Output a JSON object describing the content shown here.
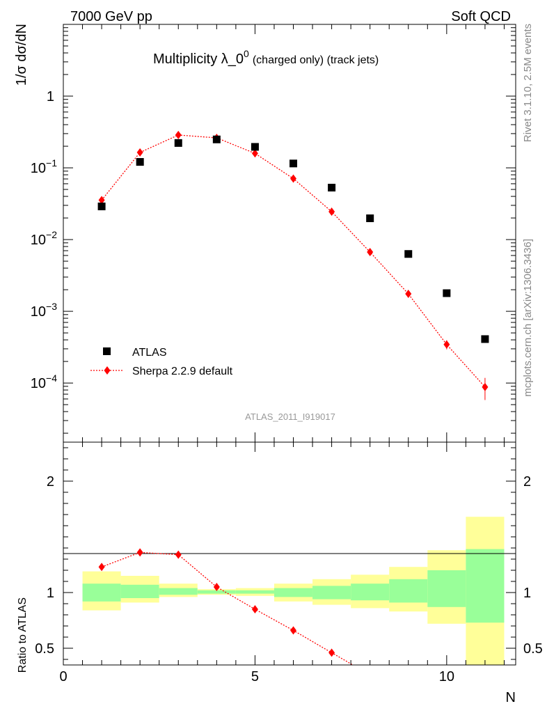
{
  "header": {
    "left": "7000 GeV pp",
    "right": "Soft QCD"
  },
  "main_title": {
    "prefix": "Multiplicity λ_0",
    "superscript": "0",
    "suffix": "(charged only) (track jets)"
  },
  "side_text": {
    "rivet": "Rivet 3.1.10,  2.5M events",
    "mcplots": "mcplots.cern.ch [arXiv:1306.3436]"
  },
  "analysis_tag": "ATLAS_2011_I919017",
  "legend": {
    "data_label": "ATLAS",
    "mc_label": "Sherpa 2.2.9 default"
  },
  "colors": {
    "data": "#000000",
    "mc": "#ff0000",
    "band_inner": "#99ff99",
    "band_outer": "#ffff99",
    "side_text": "#888888"
  },
  "chart_data": [
    {
      "type": "scatter",
      "panel": "main",
      "ylabel": "1/σ dσ/dN",
      "yscale": "log",
      "xlim": [
        0,
        11.8
      ],
      "ylim": [
        1.5e-05,
        10
      ],
      "ytick_labels": [
        {
          "mantissa": "10",
          "exp": "−4"
        },
        {
          "mantissa": "10",
          "exp": "−3"
        },
        {
          "mantissa": "10",
          "exp": "−2"
        },
        {
          "mantissa": "10",
          "exp": "−1"
        },
        {
          "mantissa": "1",
          "exp": ""
        }
      ],
      "series": [
        {
          "name": "ATLAS",
          "x": [
            1,
            2,
            3,
            4,
            5,
            6,
            7,
            8,
            9,
            10,
            11
          ],
          "y": [
            0.029,
            0.121,
            0.222,
            0.249,
            0.196,
            0.115,
            0.053,
            0.0198,
            0.0063,
            0.00179,
            0.00041
          ]
        },
        {
          "name": "Sherpa 2.2.9 default",
          "x": [
            1,
            2,
            3,
            4,
            5,
            6,
            7,
            8,
            9,
            10,
            11
          ],
          "y": [
            0.0355,
            0.164,
            0.287,
            0.262,
            0.159,
            0.0708,
            0.0245,
            0.0067,
            0.00175,
            0.000345,
            8.8e-05
          ],
          "yerr": [
            0,
            0,
            0,
            0,
            0,
            0,
            0,
            0,
            0,
            5e-05,
            3e-05
          ]
        }
      ]
    },
    {
      "type": "line",
      "panel": "ratio",
      "xlabel": "N",
      "ylabel": "Ratio to ATLAS",
      "xlim": [
        0,
        11.8
      ],
      "ylim": [
        0.35,
        2.35
      ],
      "xtick_labels": [
        "0",
        "5",
        "10"
      ],
      "ytick_labels": [
        "0.5",
        "1",
        "2"
      ],
      "bands": [
        {
          "xlo": 0.5,
          "xhi": 1.5,
          "inner": [
            0.92,
            1.08
          ],
          "outer": [
            0.84,
            1.19
          ]
        },
        {
          "xlo": 1.5,
          "xhi": 2.5,
          "inner": [
            0.95,
            1.07
          ],
          "outer": [
            0.91,
            1.15
          ]
        },
        {
          "xlo": 2.5,
          "xhi": 3.5,
          "inner": [
            0.98,
            1.04
          ],
          "outer": [
            0.96,
            1.08
          ]
        },
        {
          "xlo": 3.5,
          "xhi": 4.5,
          "inner": [
            0.99,
            1.02
          ],
          "outer": [
            0.98,
            1.03
          ]
        },
        {
          "xlo": 4.5,
          "xhi": 5.5,
          "inner": [
            0.99,
            1.02
          ],
          "outer": [
            0.97,
            1.04
          ]
        },
        {
          "xlo": 5.5,
          "xhi": 6.5,
          "inner": [
            0.96,
            1.04
          ],
          "outer": [
            0.92,
            1.08
          ]
        },
        {
          "xlo": 6.5,
          "xhi": 7.5,
          "inner": [
            0.94,
            1.06
          ],
          "outer": [
            0.89,
            1.12
          ]
        },
        {
          "xlo": 7.5,
          "xhi": 8.5,
          "inner": [
            0.93,
            1.08
          ],
          "outer": [
            0.86,
            1.16
          ]
        },
        {
          "xlo": 8.5,
          "xhi": 9.5,
          "inner": [
            0.91,
            1.12
          ],
          "outer": [
            0.83,
            1.23
          ]
        },
        {
          "xlo": 9.5,
          "xhi": 10.5,
          "inner": [
            0.87,
            1.2
          ],
          "outer": [
            0.72,
            1.38
          ]
        },
        {
          "xlo": 10.5,
          "xhi": 11.5,
          "inner": [
            0.73,
            1.39
          ],
          "outer": [
            0.35,
            1.68
          ]
        }
      ],
      "series": [
        {
          "name": "Sherpa 2.2.9 default",
          "x": [
            1,
            2,
            3,
            4,
            5,
            6,
            7
          ],
          "y": [
            1.23,
            1.36,
            1.34,
            1.05,
            0.85,
            0.66,
            0.46
          ]
        }
      ]
    }
  ]
}
